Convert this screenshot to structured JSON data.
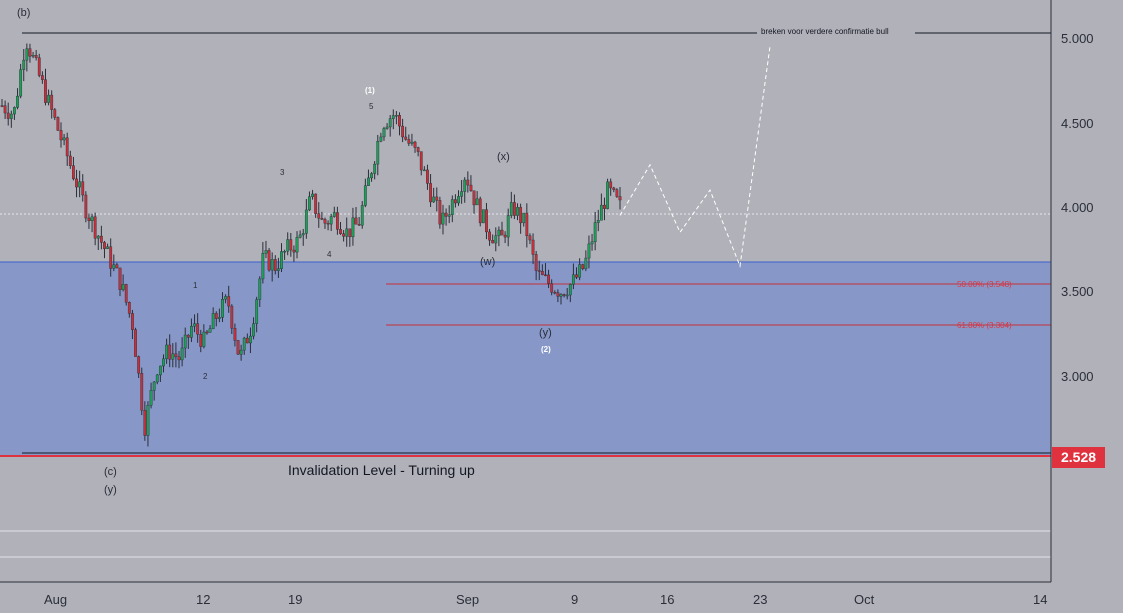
{
  "chart_data": {
    "type": "candlestick",
    "price_axis": {
      "ticks": [
        "5.000",
        "4.500",
        "4.000",
        "3.500",
        "3.000"
      ],
      "tick_values": [
        5.0,
        4.5,
        4.0,
        3.5,
        3.0
      ],
      "current_price_label": "2.528",
      "ylim": [
        2.0,
        5.2
      ]
    },
    "time_axis": {
      "ticks": [
        "Aug",
        "12",
        "19",
        "Sep",
        "9",
        "16",
        "23",
        "Oct",
        "14"
      ]
    },
    "close_series_approx": [
      4.6,
      4.55,
      5.0,
      4.8,
      4.6,
      4.4,
      4.2,
      4.0,
      3.85,
      3.7,
      3.55,
      3.3,
      2.7,
      3.05,
      3.15,
      3.1,
      3.3,
      3.2,
      3.35,
      3.45,
      3.1,
      3.3,
      3.7,
      3.65,
      3.75,
      3.8,
      4.05,
      3.9,
      3.95,
      3.85,
      3.9,
      4.2,
      4.5,
      4.55,
      4.4,
      4.3,
      4.1,
      3.9,
      4.05,
      4.2,
      4.0,
      3.85,
      3.8,
      4.0,
      3.9,
      3.6,
      3.55,
      3.5,
      3.55,
      3.65,
      3.9,
      4.1,
      4.0
    ],
    "projection_path": [
      3.95,
      4.25,
      3.85,
      4.1,
      3.65,
      4.95
    ],
    "levels": [
      {
        "name": "breakout-level",
        "value": 5.03,
        "label": "breken voor verdere confirmatie bull"
      },
      {
        "name": "zone-top",
        "value": 3.68
      },
      {
        "name": "fib-50",
        "value": 3.548,
        "label": "50.00% (3.548)"
      },
      {
        "name": "fib-618",
        "value": 3.304,
        "label": "61.80% (3.304)"
      },
      {
        "name": "invalidation",
        "value": 2.528,
        "label": "Invalidation Level - Turning up"
      },
      {
        "name": "current-dotted",
        "value": 3.97
      }
    ],
    "wave_labels": [
      "(b)",
      "(c)",
      "(y)",
      "1",
      "2",
      "3",
      "4",
      "5",
      "(1)",
      "(x)",
      "(w)",
      "(y)",
      "(2)"
    ]
  },
  "colors": {
    "background": "#b1b1b9",
    "zone_fill": "#8597c8",
    "zone_border": "#3a5fcd",
    "red_line": "#e0323e",
    "candle_up": "#1e9e58",
    "candle_down": "#c6303a",
    "price_badge": "#e0323e"
  }
}
